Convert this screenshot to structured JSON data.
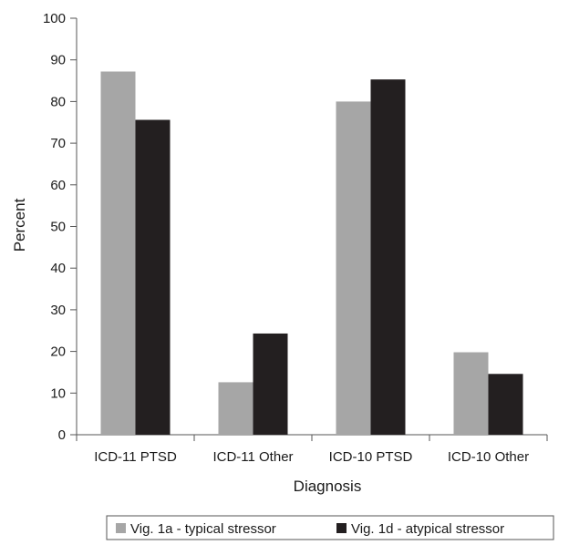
{
  "chart_data": {
    "type": "bar",
    "categories": [
      "ICD-11 PTSD",
      "ICD-11 Other",
      "ICD-10 PTSD",
      "ICD-10 Other"
    ],
    "series": [
      {
        "name": "Vig. 1a - typical stressor",
        "values": [
          87.2,
          12.6,
          80.0,
          19.8
        ],
        "color": "#a6a6a6"
      },
      {
        "name": "Vig. 1d - atypical stressor",
        "values": [
          75.6,
          24.3,
          85.3,
          14.6
        ],
        "color": "#231f20"
      }
    ],
    "xlabel": "Diagnosis",
    "ylabel": "Percent",
    "ylim": [
      0,
      100
    ],
    "yticks": [
      0,
      10,
      20,
      30,
      40,
      50,
      60,
      70,
      80,
      90,
      100
    ],
    "grid": false,
    "legend_position": "bottom"
  }
}
